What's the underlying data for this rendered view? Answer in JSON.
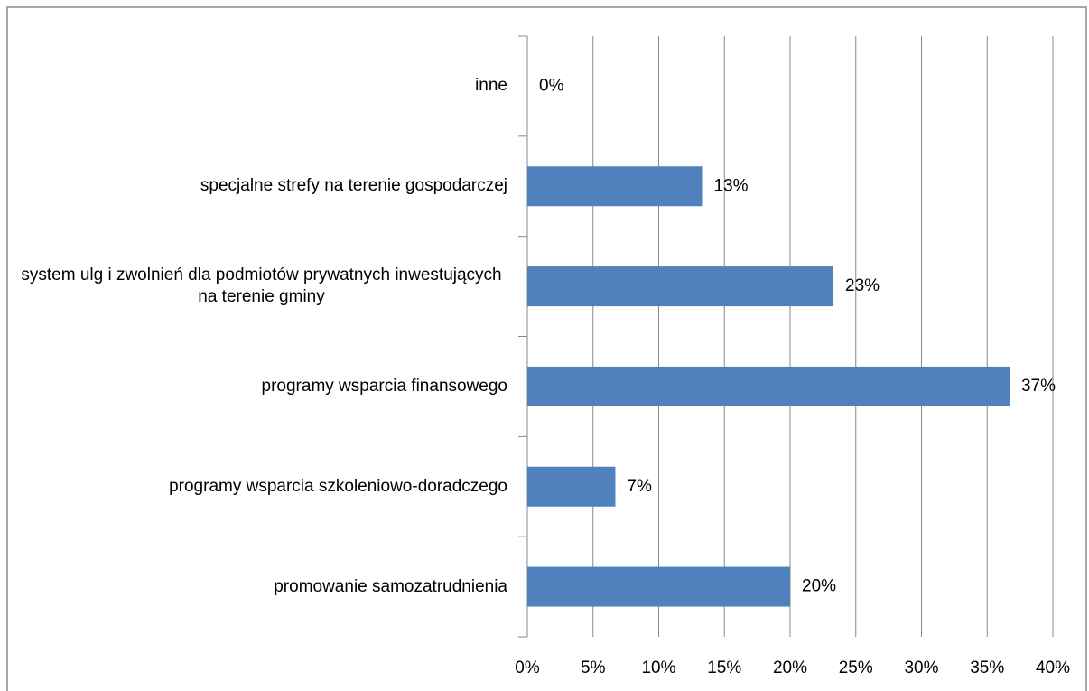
{
  "chart_data": {
    "type": "bar",
    "orientation": "horizontal",
    "categories": [
      "inne",
      "specjalne strefy na terenie gospodarczej",
      "system ulg i zwolnień dla podmiotów prywatnych inwestujących na terenie gminy",
      "programy wsparcia finansowego",
      "programy wsparcia szkoleniowo-doradczego",
      "promowanie  samozatrudnienia"
    ],
    "values": [
      0,
      13.3,
      23.3,
      36.7,
      6.7,
      20
    ],
    "value_labels": [
      "0%",
      "13%",
      "23%",
      "37%",
      "7%",
      "20%"
    ],
    "color": "#4f81bd",
    "xlim": [
      0,
      40
    ],
    "xticks": [
      {
        "value": 0,
        "label": "0%"
      },
      {
        "value": 5,
        "label": "5%"
      },
      {
        "value": 10,
        "label": "10%"
      },
      {
        "value": 15,
        "label": "15%"
      },
      {
        "value": 20,
        "label": "20%"
      },
      {
        "value": 25,
        "label": "25%"
      },
      {
        "value": 30,
        "label": "30%"
      },
      {
        "value": 35,
        "label": "35%"
      },
      {
        "value": 40,
        "label": "40%"
      }
    ],
    "grid": true
  }
}
